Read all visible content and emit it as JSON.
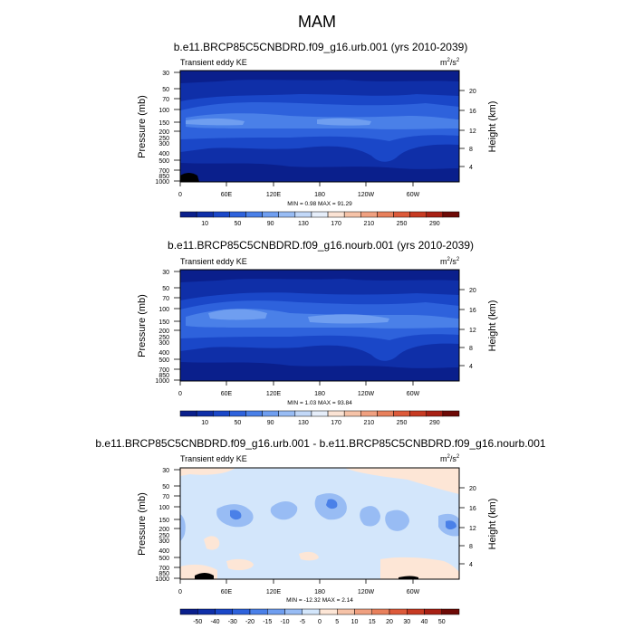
{
  "page_title": "MAM",
  "chart_data": [
    {
      "type": "heatmap",
      "title": "b.e11.BRCP85C5CNBDRD.f09_g16.urb.001 (yrs 2010-2039)",
      "left_label": "Transient eddy KE",
      "units_base": "m",
      "units_exp1": "2",
      "units_mid": "/s",
      "units_exp2": "2",
      "ylabel": "Pressure (mb)",
      "y2label": "Height (km)",
      "yticks": [
        "30",
        "50",
        "70",
        "100",
        "150",
        "200",
        "250",
        "300",
        "400",
        "500",
        "700",
        "850",
        "1000"
      ],
      "y2ticks": [
        "20",
        "16",
        "12",
        "8",
        "4"
      ],
      "xticks": [
        "0",
        "60E",
        "120E",
        "180",
        "120W",
        "60W"
      ],
      "stats": "MIN =   0.98  MAX =  91.29",
      "colorbar_labels": [
        "10",
        "50",
        "90",
        "130",
        "170",
        "210",
        "250",
        "290"
      ],
      "colorbar_colors": [
        "#0a1f8c",
        "#0f2fa8",
        "#1a47c8",
        "#2e62dc",
        "#4a80e8",
        "#6f9ef0",
        "#98bcf4",
        "#c2d8f8",
        "#e6eefa",
        "#fbe3d4",
        "#f6c3a8",
        "#f0a080",
        "#e8805c",
        "#dd5a3a",
        "#c73a22",
        "#a82014",
        "#6e0a06"
      ],
      "background": "#0f2fa8"
    },
    {
      "type": "heatmap",
      "title": "b.e11.BRCP85C5CNBDRD.f09_g16.nourb.001 (yrs 2010-2039)",
      "left_label": "Transient eddy KE",
      "units_base": "m",
      "units_exp1": "2",
      "units_mid": "/s",
      "units_exp2": "2",
      "ylabel": "Pressure (mb)",
      "y2label": "Height (km)",
      "yticks": [
        "30",
        "50",
        "70",
        "100",
        "150",
        "200",
        "250",
        "300",
        "400",
        "500",
        "700",
        "850",
        "1000"
      ],
      "y2ticks": [
        "20",
        "16",
        "12",
        "8",
        "4"
      ],
      "xticks": [
        "0",
        "60E",
        "120E",
        "180",
        "120W",
        "60W"
      ],
      "stats": "MIN =   1.03  MAX =  93.84",
      "colorbar_labels": [
        "10",
        "50",
        "90",
        "130",
        "170",
        "210",
        "250",
        "290"
      ],
      "colorbar_colors": [
        "#0a1f8c",
        "#0f2fa8",
        "#1a47c8",
        "#2e62dc",
        "#4a80e8",
        "#6f9ef0",
        "#98bcf4",
        "#c2d8f8",
        "#e6eefa",
        "#fbe3d4",
        "#f6c3a8",
        "#f0a080",
        "#e8805c",
        "#dd5a3a",
        "#c73a22",
        "#a82014",
        "#6e0a06"
      ],
      "background": "#0f2fa8"
    },
    {
      "type": "heatmap",
      "title": "b.e11.BRCP85C5CNBDRD.f09_g16.urb.001 - b.e11.BRCP85C5CNBDRD.f09_g16.nourb.001",
      "left_label": "Transient eddy KE",
      "units_base": "m",
      "units_exp1": "2",
      "units_mid": "/s",
      "units_exp2": "2",
      "ylabel": "Pressure (mb)",
      "y2label": "Height (km)",
      "yticks": [
        "30",
        "50",
        "70",
        "100",
        "150",
        "200",
        "250",
        "300",
        "400",
        "500",
        "700",
        "850",
        "1000"
      ],
      "y2ticks": [
        "20",
        "16",
        "12",
        "8",
        "4"
      ],
      "xticks": [
        "0",
        "60E",
        "120E",
        "180",
        "120W",
        "60W"
      ],
      "stats": "MIN = -12.32  MAX =   2.14",
      "colorbar_labels": [
        "-50",
        "-40",
        "-30",
        "-20",
        "-15",
        "-10",
        "-5",
        "0",
        "5",
        "10",
        "15",
        "20",
        "30",
        "40",
        "50"
      ],
      "colorbar_colors": [
        "#0a1f8c",
        "#0f2fa8",
        "#1a47c8",
        "#2e62dc",
        "#4a80e8",
        "#6f9ef0",
        "#98bcf4",
        "#d3e6fb",
        "#fde6d6",
        "#f6c3a8",
        "#f0a080",
        "#e8805c",
        "#dd5a3a",
        "#c73a22",
        "#a82014",
        "#6e0a06"
      ],
      "background": "#d3e6fb"
    }
  ]
}
